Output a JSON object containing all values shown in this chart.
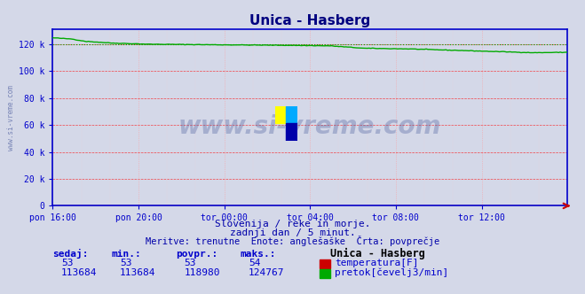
{
  "title": "Unica - Hasberg",
  "background_color": "#d4d8e8",
  "plot_bg_color": "#d4d8e8",
  "x_tick_labels": [
    "pon 16:00",
    "pon 20:00",
    "tor 00:00",
    "tor 04:00",
    "tor 08:00",
    "tor 12:00"
  ],
  "x_tick_positions": [
    0,
    48,
    96,
    144,
    192,
    240
  ],
  "y_tick_labels": [
    "0",
    "20 k",
    "40 k",
    "60 k",
    "80 k",
    "100 k",
    "120 k"
  ],
  "y_tick_positions": [
    0,
    20000,
    40000,
    60000,
    80000,
    100000,
    120000
  ],
  "ylim": [
    0,
    131000
  ],
  "xlim": [
    0,
    288
  ],
  "n_points": 289,
  "flow_min": 113684,
  "flow_max": 124767,
  "temp_value": 53,
  "temp_color": "#cc0000",
  "flow_color": "#00aa00",
  "watermark_color": "#5060a0",
  "watermark_text": "www.si-vreme.com",
  "subtitle1": "Slovenija / reke in morje.",
  "subtitle2": "zadnji dan / 5 minut.",
  "subtitle3": "Meritve: trenutne  Enote: anglešaške  Črta: povprečje",
  "legend_title": "Unica - Hasberg",
  "legend_label1": "temperatura[F]",
  "legend_label2": "pretok[čevelj3/min]",
  "stats_headers": [
    "sedaj:",
    "min.:",
    "povpr.:",
    "maks.:"
  ],
  "stats_temp": [
    "53",
    "53",
    "53",
    "54"
  ],
  "stats_flow": [
    "113684",
    "113684",
    "118980",
    "124767"
  ],
  "sidebar_text": "www.si-vreme.com",
  "sidebar_color": "#5060a0",
  "axis_color": "#0000cc",
  "tick_label_color": "#0000cc"
}
